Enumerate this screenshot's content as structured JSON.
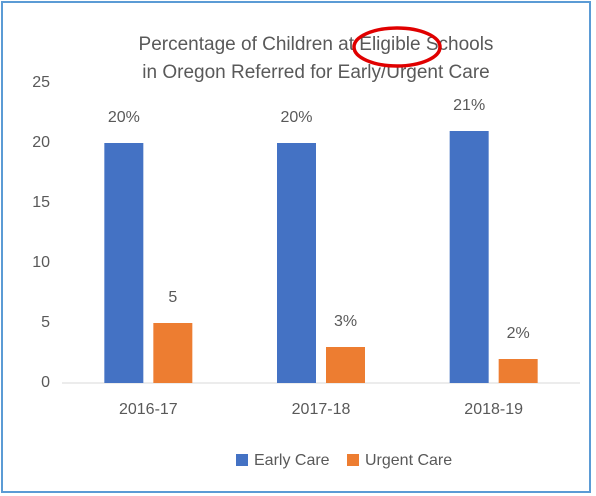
{
  "chart_data": {
    "type": "bar",
    "title": [
      "Percentage of Children at Eligible Schools",
      "in Oregon Referred for Early/Urgent Care"
    ],
    "categories": [
      "2016-17",
      "2017-18",
      "2018-19"
    ],
    "series": [
      {
        "name": "Early Care",
        "color": "#4472c4",
        "values": [
          20,
          20,
          21
        ],
        "value_labels": [
          "20%",
          "20%",
          "21%"
        ]
      },
      {
        "name": "Urgent Care",
        "color": "#ed7d31",
        "values": [
          5,
          3,
          2
        ],
        "value_labels": [
          "5",
          "3%",
          "2%"
        ]
      }
    ],
    "ylim": [
      0,
      25
    ],
    "yticks": [
      0,
      5,
      10,
      15,
      20,
      25
    ],
    "grid": false,
    "legend": "bottom"
  }
}
